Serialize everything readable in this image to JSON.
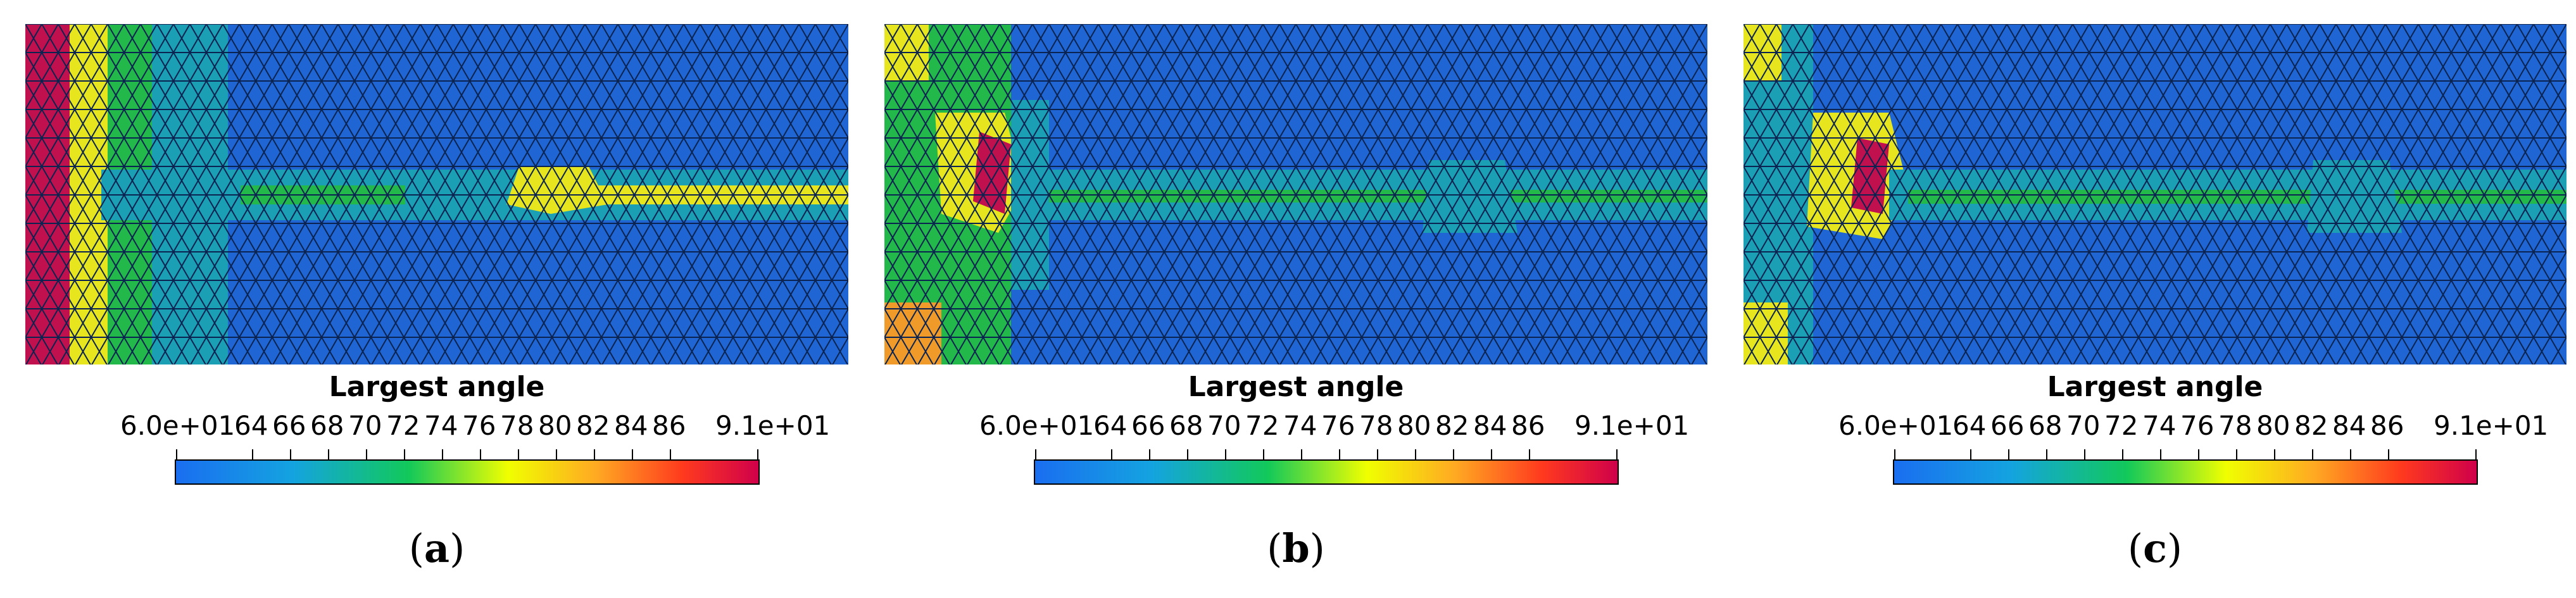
{
  "figure": {
    "colorbar": {
      "title": "Largest angle",
      "min_label": "6.0e+01",
      "ticks": [
        "64",
        "66",
        "68",
        "70",
        "72",
        "74",
        "76",
        "78",
        "80",
        "82",
        "84",
        "86"
      ],
      "max_label": "9.1e+01",
      "range": [
        60,
        91
      ]
    },
    "panels": [
      {
        "label_open": "(",
        "label": "a",
        "label_close": ")"
      },
      {
        "label_open": "(",
        "label": "b",
        "label_close": ")"
      },
      {
        "label_open": "(",
        "label": "c",
        "label_close": ")"
      }
    ]
  },
  "colors": {
    "base": "#1f66d4",
    "teal": "#1b9fb5",
    "green": "#22b84a",
    "yellow": "#e7e51d",
    "orange": "#f09a2a",
    "red": "#e23a30",
    "magenta": "#c0114e",
    "edge": "#0b2350"
  }
}
